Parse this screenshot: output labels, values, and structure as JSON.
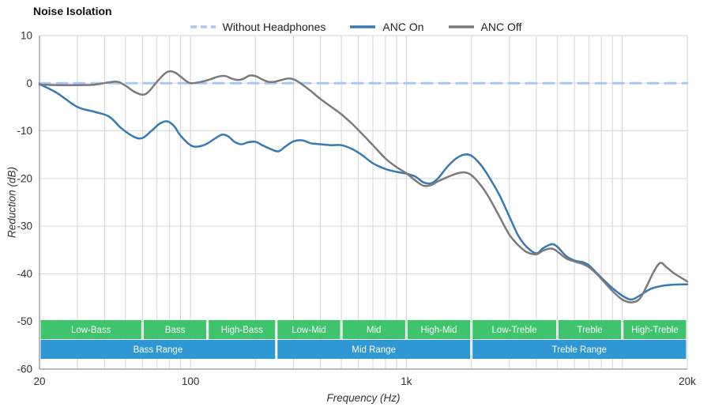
{
  "chart_data": {
    "type": "line",
    "title": "Noise Isolation",
    "xlabel": "Frequency (Hz)",
    "ylabel": "Reduction (dB)",
    "xscale": "log",
    "xlim": [
      20,
      20000
    ],
    "ylim": [
      -60,
      10
    ],
    "grid": true,
    "legend_position": "top-center",
    "x_ticks": [
      {
        "v": 20,
        "label": "20"
      },
      {
        "v": 100,
        "label": "100"
      },
      {
        "v": 1000,
        "label": "1k"
      },
      {
        "v": 20000,
        "label": "20k"
      }
    ],
    "x_minor_ticks": [
      30,
      40,
      50,
      60,
      70,
      80,
      90,
      200,
      300,
      400,
      500,
      600,
      700,
      800,
      900,
      2000,
      3000,
      4000,
      5000,
      6000,
      7000,
      8000,
      9000,
      10000
    ],
    "y_ticks": [
      {
        "v": 10,
        "label": "10"
      },
      {
        "v": 0,
        "label": "0"
      },
      {
        "v": -10,
        "label": "-10"
      },
      {
        "v": -20,
        "label": "-20"
      },
      {
        "v": -30,
        "label": "-30"
      },
      {
        "v": -40,
        "label": "-40"
      },
      {
        "v": -50,
        "label": "-50"
      },
      {
        "v": -60,
        "label": "-60"
      }
    ],
    "series": [
      {
        "name": "Without Headphones",
        "color": "#a9c7f2",
        "dash": [
          13,
          9
        ],
        "width": 3,
        "points": [
          [
            20,
            0
          ],
          [
            200,
            0
          ],
          [
            2000,
            0
          ],
          [
            20000,
            0
          ]
        ]
      },
      {
        "name": "ANC On",
        "color": "#3879b6",
        "dash": null,
        "width": 2.5,
        "points": [
          [
            20,
            -0.2
          ],
          [
            24,
            -2
          ],
          [
            30,
            -5
          ],
          [
            36,
            -6
          ],
          [
            42,
            -7
          ],
          [
            48,
            -9.5
          ],
          [
            55,
            -11.3
          ],
          [
            60,
            -11.5
          ],
          [
            66,
            -10
          ],
          [
            72,
            -8.5
          ],
          [
            78,
            -8
          ],
          [
            84,
            -9
          ],
          [
            90,
            -11
          ],
          [
            100,
            -13
          ],
          [
            108,
            -13.3
          ],
          [
            118,
            -12.8
          ],
          [
            128,
            -11.8
          ],
          [
            140,
            -10.8
          ],
          [
            150,
            -11.2
          ],
          [
            160,
            -12.3
          ],
          [
            172,
            -12.8
          ],
          [
            185,
            -12.4
          ],
          [
            200,
            -12.3
          ],
          [
            215,
            -13
          ],
          [
            235,
            -13.8
          ],
          [
            255,
            -14.3
          ],
          [
            275,
            -13.3
          ],
          [
            300,
            -12.2
          ],
          [
            330,
            -12
          ],
          [
            360,
            -12.6
          ],
          [
            400,
            -12.8
          ],
          [
            450,
            -13
          ],
          [
            500,
            -13
          ],
          [
            560,
            -13.8
          ],
          [
            620,
            -15
          ],
          [
            700,
            -16.8
          ],
          [
            800,
            -18
          ],
          [
            900,
            -18.6
          ],
          [
            1000,
            -19
          ],
          [
            1100,
            -19.6
          ],
          [
            1200,
            -20.8
          ],
          [
            1300,
            -21
          ],
          [
            1400,
            -20
          ],
          [
            1550,
            -17.5
          ],
          [
            1700,
            -15.8
          ],
          [
            1850,
            -15
          ],
          [
            2000,
            -15.2
          ],
          [
            2200,
            -17
          ],
          [
            2400,
            -19.5
          ],
          [
            2700,
            -23.5
          ],
          [
            3000,
            -28
          ],
          [
            3300,
            -32
          ],
          [
            3600,
            -34.3
          ],
          [
            4000,
            -35.7
          ],
          [
            4300,
            -34.6
          ],
          [
            4700,
            -33.8
          ],
          [
            5000,
            -34.3
          ],
          [
            5500,
            -36.3
          ],
          [
            6000,
            -37.2
          ],
          [
            6600,
            -37.6
          ],
          [
            7000,
            -38.2
          ],
          [
            7600,
            -39.8
          ],
          [
            8200,
            -41.3
          ],
          [
            9000,
            -43
          ],
          [
            10000,
            -44.6
          ],
          [
            11000,
            -45.4
          ],
          [
            12000,
            -44.6
          ],
          [
            13500,
            -43.2
          ],
          [
            15000,
            -42.6
          ],
          [
            17000,
            -42.3
          ],
          [
            20000,
            -42.2
          ]
        ]
      },
      {
        "name": "ANC Off",
        "color": "#7b7b7b",
        "dash": null,
        "width": 2.5,
        "points": [
          [
            20,
            -0.3
          ],
          [
            25,
            -0.4
          ],
          [
            30,
            -0.4
          ],
          [
            36,
            -0.3
          ],
          [
            42,
            0.2
          ],
          [
            46,
            0.3
          ],
          [
            50,
            -0.5
          ],
          [
            55,
            -1.8
          ],
          [
            60,
            -2.4
          ],
          [
            64,
            -1.8
          ],
          [
            70,
            0.3
          ],
          [
            76,
            2
          ],
          [
            80,
            2.5
          ],
          [
            85,
            2.2
          ],
          [
            90,
            1.4
          ],
          [
            96,
            0.4
          ],
          [
            100,
            0
          ],
          [
            106,
            0.1
          ],
          [
            115,
            0.4
          ],
          [
            125,
            0.9
          ],
          [
            135,
            1.4
          ],
          [
            145,
            1.5
          ],
          [
            155,
            1
          ],
          [
            165,
            0.7
          ],
          [
            175,
            0.9
          ],
          [
            188,
            1.6
          ],
          [
            200,
            1.5
          ],
          [
            215,
            0.8
          ],
          [
            230,
            0.3
          ],
          [
            245,
            0.3
          ],
          [
            265,
            0.7
          ],
          [
            285,
            1
          ],
          [
            305,
            0.7
          ],
          [
            330,
            -0.3
          ],
          [
            360,
            -1.6
          ],
          [
            400,
            -3.3
          ],
          [
            450,
            -5
          ],
          [
            500,
            -6.5
          ],
          [
            560,
            -8.5
          ],
          [
            620,
            -10.5
          ],
          [
            700,
            -13
          ],
          [
            800,
            -15.8
          ],
          [
            900,
            -17.6
          ],
          [
            1000,
            -18.9
          ],
          [
            1100,
            -20.4
          ],
          [
            1200,
            -21.5
          ],
          [
            1300,
            -21.4
          ],
          [
            1400,
            -20.6
          ],
          [
            1550,
            -19.7
          ],
          [
            1700,
            -19
          ],
          [
            1850,
            -18.7
          ],
          [
            2000,
            -19.3
          ],
          [
            2200,
            -21.3
          ],
          [
            2400,
            -23.8
          ],
          [
            2700,
            -28
          ],
          [
            3000,
            -31.8
          ],
          [
            3300,
            -34
          ],
          [
            3600,
            -35.4
          ],
          [
            4000,
            -35.9
          ],
          [
            4300,
            -35.1
          ],
          [
            4700,
            -34.7
          ],
          [
            5000,
            -35.3
          ],
          [
            5500,
            -36.8
          ],
          [
            6000,
            -37.4
          ],
          [
            6600,
            -38
          ],
          [
            7000,
            -38.6
          ],
          [
            7600,
            -40
          ],
          [
            8200,
            -41.6
          ],
          [
            9000,
            -43.6
          ],
          [
            10000,
            -45.4
          ],
          [
            11000,
            -46
          ],
          [
            12000,
            -45.3
          ],
          [
            13000,
            -42.5
          ],
          [
            14000,
            -39.5
          ],
          [
            15000,
            -37.7
          ],
          [
            16000,
            -38.6
          ],
          [
            17500,
            -40
          ],
          [
            20000,
            -41.6
          ]
        ]
      }
    ],
    "bands": {
      "sub": [
        {
          "label": "Low-Bass",
          "from": 20,
          "to": 60
        },
        {
          "label": "Bass",
          "from": 60,
          "to": 120
        },
        {
          "label": "High-Bass",
          "from": 120,
          "to": 250
        },
        {
          "label": "Low-Mid",
          "from": 250,
          "to": 500
        },
        {
          "label": "Mid",
          "from": 500,
          "to": 1000
        },
        {
          "label": "High-Mid",
          "from": 1000,
          "to": 2000
        },
        {
          "label": "Low-Treble",
          "from": 2000,
          "to": 5000
        },
        {
          "label": "Treble",
          "from": 5000,
          "to": 10000
        },
        {
          "label": "High-Treble",
          "from": 10000,
          "to": 20000
        }
      ],
      "main": [
        {
          "label": "Bass Range",
          "from": 20,
          "to": 250
        },
        {
          "label": "Mid Range",
          "from": 250,
          "to": 2000
        },
        {
          "label": "Treble Range",
          "from": 2000,
          "to": 20000
        }
      ]
    }
  },
  "colors": {
    "grid": "#d6d6d6",
    "axis": "#7a7a7a",
    "tick_text": "#333333",
    "band_text": "#ffffff",
    "band_sub": "#3ec46d",
    "band_main": "#2f97d4"
  }
}
